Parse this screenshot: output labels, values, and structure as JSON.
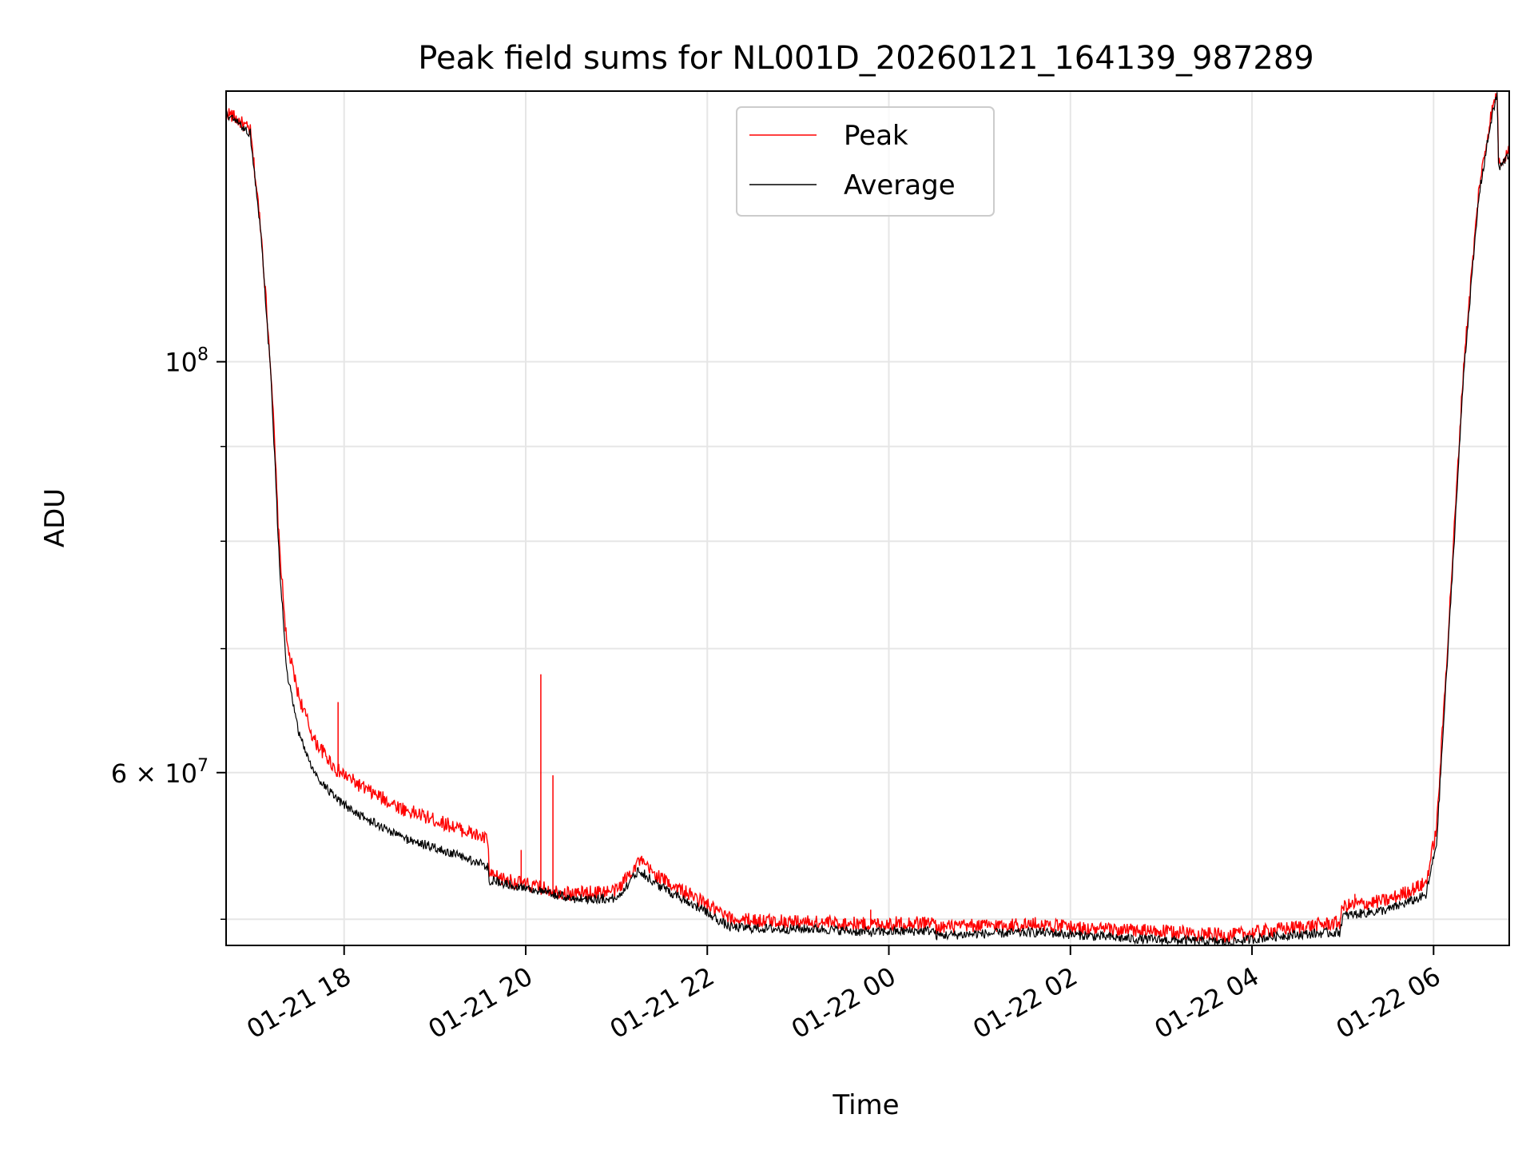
{
  "chart_data": {
    "type": "line",
    "title": "Peak field sums for NL001D_20260121_164139_987289",
    "xlabel": "Time",
    "ylabel": "ADU",
    "xlim": [
      "2026-01-21 16:42",
      "2026-01-22 06:50"
    ],
    "ylim": [
      48400000,
      140000000
    ],
    "yscale": "log",
    "grid": true,
    "legend_position": "top-center",
    "x_ticks": [
      "2026-01-21 18:00",
      "2026-01-21 20:00",
      "2026-01-21 22:00",
      "2026-01-22 00:00",
      "2026-01-22 02:00",
      "2026-01-22 04:00",
      "2026-01-22 06:00"
    ],
    "x_tick_labels": [
      "01-21 18",
      "01-21 20",
      "01-21 22",
      "01-22 00",
      "01-22 02",
      "01-22 04",
      "01-22 06"
    ],
    "y_major_ticks": [
      {
        "value": 100000000,
        "label_base": "10",
        "label_exp": "8"
      },
      {
        "value": 60000000,
        "label_base": "6 × 10",
        "label_exp": "7"
      }
    ],
    "y_minor_ticks": [
      50000000,
      70000000,
      80000000,
      90000000
    ],
    "series": [
      {
        "name": "Peak",
        "color": "#ff0000",
        "x": [
          "2026-01-21 16:42",
          "2026-01-21 16:50",
          "2026-01-21 16:58",
          "2026-01-21 17:05",
          "2026-01-21 17:12",
          "2026-01-21 17:17",
          "2026-01-21 17:22",
          "2026-01-21 17:30",
          "2026-01-21 17:40",
          "2026-01-21 17:55",
          "2026-01-21 18:15",
          "2026-01-21 18:40",
          "2026-01-21 19:10",
          "2026-01-21 19:35",
          "2026-01-21 19:36",
          "2026-01-21 20:00",
          "2026-01-21 20:30",
          "2026-01-21 21:00",
          "2026-01-21 21:15",
          "2026-01-21 21:25",
          "2026-01-21 21:40",
          "2026-01-21 21:55",
          "2026-01-21 22:15",
          "2026-01-21 22:45",
          "2026-01-21 23:15",
          "2026-01-21 23:45",
          "2026-01-22 00:30",
          "2026-01-22 00:31",
          "2026-01-22 01:00",
          "2026-01-22 01:40",
          "2026-01-22 02:10",
          "2026-01-22 02:40",
          "2026-01-22 03:10",
          "2026-01-22 03:45",
          "2026-01-22 04:20",
          "2026-01-22 04:58",
          "2026-01-22 05:00",
          "2026-01-22 05:30",
          "2026-01-22 05:55",
          "2026-01-22 06:02",
          "2026-01-22 06:10",
          "2026-01-22 06:20",
          "2026-01-22 06:30",
          "2026-01-22 06:38",
          "2026-01-22 06:42",
          "2026-01-22 06:43",
          "2026-01-22 06:50"
        ],
        "y": [
          136500000,
          135000000,
          133200000,
          118000000,
          98000000,
          80000000,
          70500000,
          66000000,
          62500000,
          60200000,
          58700000,
          57300000,
          56200000,
          55200000,
          52800000,
          52200000,
          51600000,
          51800000,
          53800000,
          52900000,
          52000000,
          51200000,
          50000000,
          49900000,
          49800000,
          49700000,
          49800000,
          49500000,
          49600000,
          49700000,
          49400000,
          49300000,
          49200000,
          49000000,
          49400000,
          49800000,
          50800000,
          51200000,
          52300000,
          56000000,
          72000000,
          100000000,
          124000000,
          136000000,
          140000000,
          128000000,
          130000000
        ]
      },
      {
        "name": "Average",
        "color": "#000000",
        "x": [
          "2026-01-21 16:42",
          "2026-01-21 16:50",
          "2026-01-21 16:58",
          "2026-01-21 17:05",
          "2026-01-21 17:12",
          "2026-01-21 17:17",
          "2026-01-21 17:22",
          "2026-01-21 17:30",
          "2026-01-21 17:40",
          "2026-01-21 17:55",
          "2026-01-21 18:15",
          "2026-01-21 18:40",
          "2026-01-21 19:10",
          "2026-01-21 19:35",
          "2026-01-21 19:36",
          "2026-01-21 20:00",
          "2026-01-21 20:30",
          "2026-01-21 21:00",
          "2026-01-21 21:15",
          "2026-01-21 21:25",
          "2026-01-21 21:40",
          "2026-01-21 21:55",
          "2026-01-21 22:15",
          "2026-01-21 22:45",
          "2026-01-21 23:15",
          "2026-01-21 23:45",
          "2026-01-22 00:30",
          "2026-01-22 00:31",
          "2026-01-22 01:00",
          "2026-01-22 01:40",
          "2026-01-22 02:10",
          "2026-01-22 02:40",
          "2026-01-22 03:10",
          "2026-01-22 03:45",
          "2026-01-22 04:20",
          "2026-01-22 04:58",
          "2026-01-22 05:00",
          "2026-01-22 05:30",
          "2026-01-22 05:55",
          "2026-01-22 06:02",
          "2026-01-22 06:10",
          "2026-01-22 06:20",
          "2026-01-22 06:30",
          "2026-01-22 06:38",
          "2026-01-22 06:42",
          "2026-01-22 06:43",
          "2026-01-22 06:50"
        ],
        "y": [
          136000000,
          134500000,
          132800000,
          117000000,
          97000000,
          78500000,
          68000000,
          63000000,
          60000000,
          58000000,
          56600000,
          55300000,
          54300000,
          53400000,
          52500000,
          52000000,
          51300000,
          51300000,
          53200000,
          52300000,
          51500000,
          50700000,
          49500000,
          49400000,
          49400000,
          49200000,
          49300000,
          49000000,
          49100000,
          49200000,
          49000000,
          48800000,
          48700000,
          48600000,
          49000000,
          49200000,
          50200000,
          50600000,
          51500000,
          55000000,
          71000000,
          99000000,
          123000000,
          135000000,
          139500000,
          127000000,
          129500000
        ]
      }
    ],
    "spikes": {
      "series": "Peak",
      "x": [
        "2026-01-21 17:56",
        "2026-01-21 19:57",
        "2026-01-21 20:10",
        "2026-01-21 20:18",
        "2026-01-21 23:48",
        "2026-01-22 05:08"
      ],
      "y": [
        65500000,
        54500000,
        67800000,
        59800000,
        50600000,
        51600000
      ]
    }
  }
}
